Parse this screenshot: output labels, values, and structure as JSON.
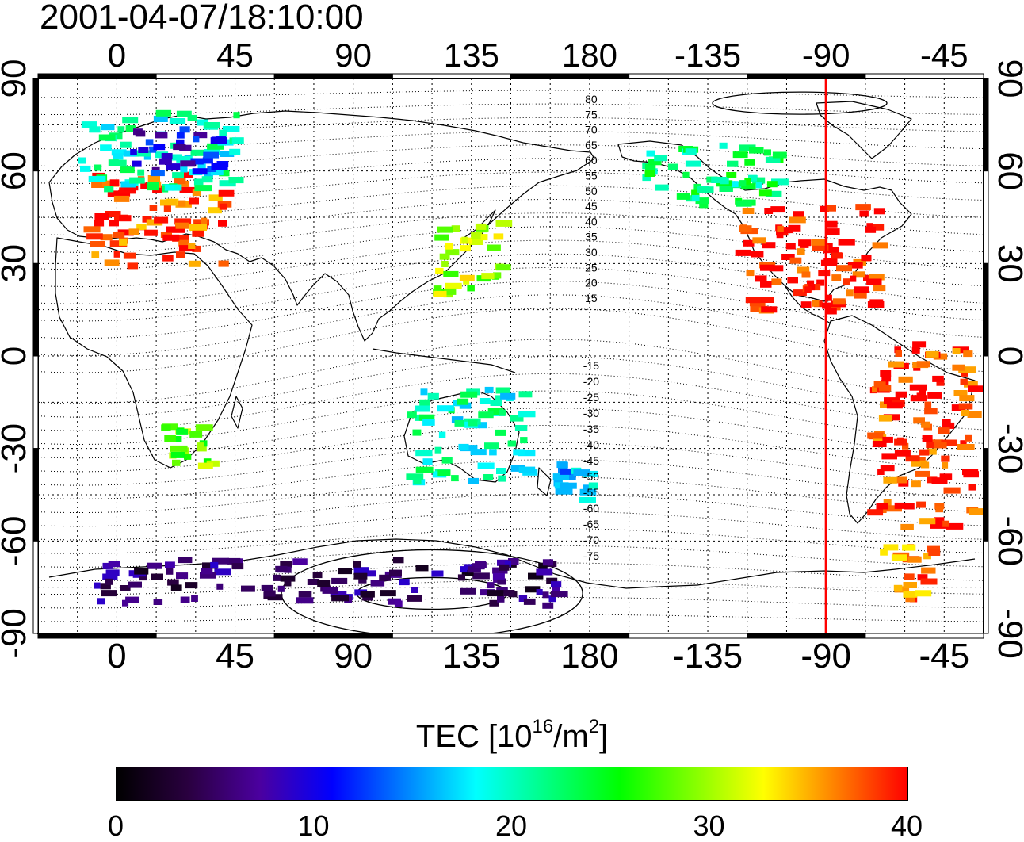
{
  "title": "2001-04-07/18:10:00",
  "axes": {
    "lon_ticks": [
      "0",
      "45",
      "90",
      "135",
      "180",
      "-135",
      "-90",
      "-45"
    ],
    "lat_ticks": [
      "90",
      "60",
      "30",
      "0",
      "-30",
      "-60",
      "-90"
    ],
    "lat_ticks_left": [
      "90",
      "60",
      "30",
      "0",
      "-30",
      "-60",
      "-90"
    ]
  },
  "map": {
    "marker_line_lon": -90,
    "marker_color": "#ff0000",
    "contour_labels_north": [
      "80",
      "75",
      "70",
      "65",
      "60",
      "55",
      "50",
      "45",
      "40",
      "35",
      "30",
      "25",
      "20",
      "15"
    ],
    "contour_labels_south": [
      "-15",
      "-20",
      "-25",
      "-30",
      "-35",
      "-40",
      "-45",
      "-50",
      "-55",
      "-60",
      "-65",
      "-70",
      "-75"
    ]
  },
  "colorbar": {
    "label_main": "TEC  [10",
    "label_exp": "16",
    "label_mid": "/m",
    "label_exp2": "2",
    "label_end": "]",
    "min": 0,
    "max": 40,
    "ticks": [
      "0",
      "10",
      "20",
      "30",
      "40"
    ],
    "colors": [
      "#000000",
      "#2a0040",
      "#4b00a0",
      "#0000ff",
      "#0080ff",
      "#00ffff",
      "#00ff80",
      "#00ff00",
      "#80ff00",
      "#ffff00",
      "#ff8000",
      "#ff0000"
    ]
  },
  "chart_data": {
    "type": "heatmap",
    "title": "2001-04-07/18:10:00",
    "xlabel": "",
    "ylabel": "",
    "xlim": [
      -30,
      330
    ],
    "ylim": [
      -90,
      90
    ],
    "value_label": "TEC [10^16/m^2]",
    "vlim": [
      0,
      40
    ],
    "regions": [
      {
        "lon": [
          -15,
          40
        ],
        "lat": [
          30,
          60
        ],
        "tec": 38
      },
      {
        "lon": [
          -15,
          45
        ],
        "lat": [
          55,
          80
        ],
        "tec": 20
      },
      {
        "lon": [
          5,
          40
        ],
        "lat": [
          60,
          75
        ],
        "tec": 10
      },
      {
        "lon": [
          120,
          145
        ],
        "lat": [
          20,
          45
        ],
        "tec": 30
      },
      {
        "lon": [
          -125,
          -70
        ],
        "lat": [
          15,
          50
        ],
        "tec": 40
      },
      {
        "lon": [
          -165,
          -110
        ],
        "lat": [
          50,
          70
        ],
        "tec": 22
      },
      {
        "lon": [
          -75,
          -35
        ],
        "lat": [
          -55,
          5
        ],
        "tec": 39
      },
      {
        "lon": [
          15,
          35
        ],
        "lat": [
          -35,
          -20
        ],
        "tec": 28
      },
      {
        "lon": [
          110,
          155
        ],
        "lat": [
          -40,
          -10
        ],
        "tec": 20
      },
      {
        "lon": [
          165,
          180
        ],
        "lat": [
          -48,
          -34
        ],
        "tec": 16
      },
      {
        "lon": [
          -10,
          170
        ],
        "lat": [
          -80,
          -65
        ],
        "tec": 5
      },
      {
        "lon": [
          -70,
          -50
        ],
        "lat": [
          -78,
          -60
        ],
        "tec": 37
      }
    ]
  }
}
